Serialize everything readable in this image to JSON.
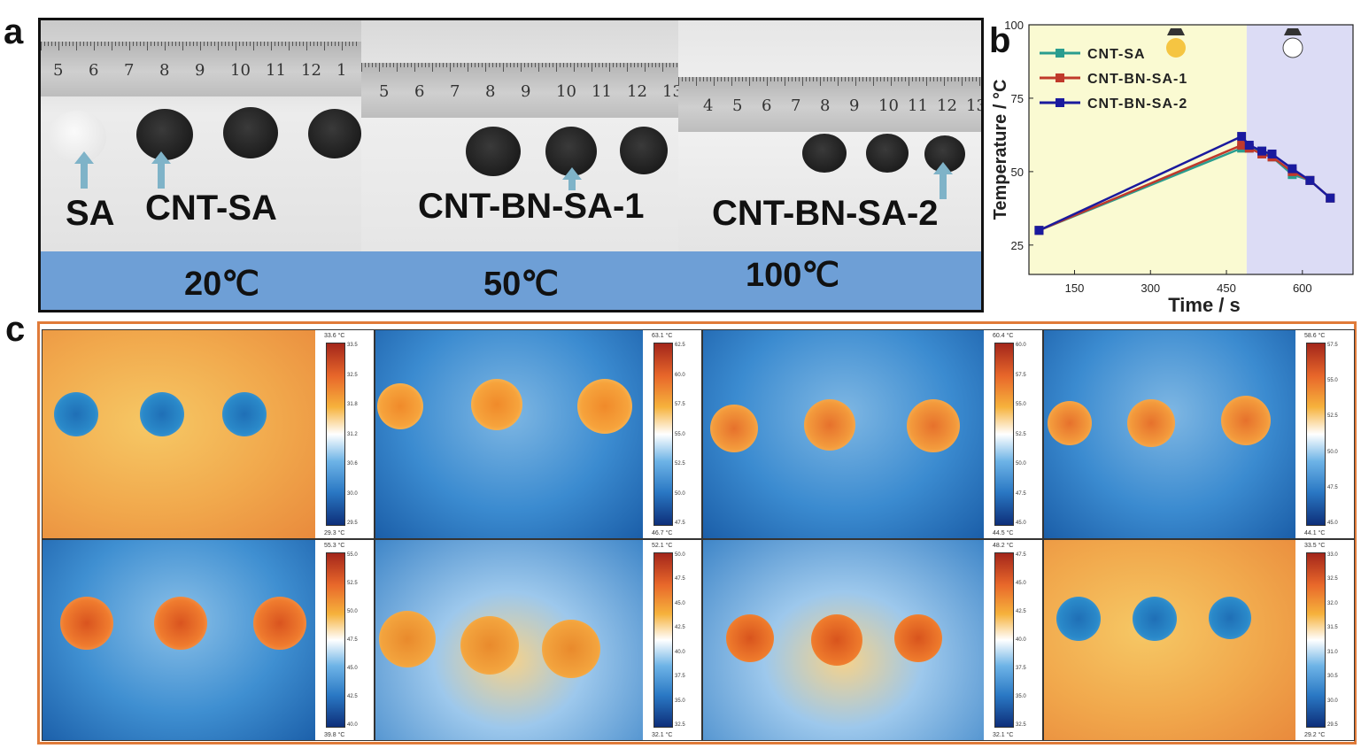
{
  "panel_labels": {
    "a": "a",
    "b": "b",
    "c": "c"
  },
  "panel_a": {
    "ruler_numbers": [
      [
        "5",
        "6",
        "7",
        "8",
        "9",
        "10",
        "11",
        "12",
        "1"
      ],
      [
        "5",
        "6",
        "7",
        "8",
        "9",
        "10",
        "11",
        "12",
        "13"
      ],
      [
        "4",
        "5",
        "6",
        "7",
        "8",
        "9",
        "10",
        "11",
        "12",
        "13"
      ]
    ],
    "sample_labels": [
      "SA",
      "CNT-SA",
      "CNT-BN-SA-1",
      "CNT-BN-SA-2"
    ],
    "temperatures": [
      "20℃",
      "50℃",
      "100℃"
    ],
    "colors": {
      "bar": "#6e9fd6",
      "arrow": "#7fb3c8"
    }
  },
  "panel_b": {
    "chart_data": {
      "type": "line",
      "xlabel": "Time / s",
      "ylabel": "Temperature / °C",
      "xlim": [
        60,
        700
      ],
      "ylim": [
        15,
        100
      ],
      "xticks": [
        150,
        300,
        450,
        600
      ],
      "yticks": [
        25,
        50,
        75,
        100
      ],
      "heating_region": [
        60,
        490
      ],
      "cooling_region": [
        490,
        700
      ],
      "region_colors": {
        "heating": "#fafad2",
        "cooling": "#dcdcf5"
      },
      "legend_position": "top-left",
      "series": [
        {
          "name": "CNT-SA",
          "color": "#2a9d8f",
          "x": [
            80,
            480,
            495,
            520,
            540,
            580,
            615,
            655
          ],
          "y": [
            30,
            58,
            58,
            57,
            55,
            49,
            47,
            41
          ]
        },
        {
          "name": "CNT-BN-SA-1",
          "color": "#c0392b",
          "x": [
            80,
            480,
            495,
            520,
            540,
            580,
            615,
            655
          ],
          "y": [
            30,
            59,
            58,
            56,
            55,
            50,
            47,
            41
          ]
        },
        {
          "name": "CNT-BN-SA-2",
          "color": "#1a1a9e",
          "x": [
            80,
            480,
            495,
            520,
            540,
            580,
            615,
            655
          ],
          "y": [
            30,
            62,
            59,
            57,
            56,
            51,
            47,
            41
          ]
        }
      ]
    }
  },
  "panel_c": {
    "thermal_images": [
      {
        "cbar_top": "33.6 °C",
        "cbar_bottom": "29.3 °C",
        "ticks": [
          "33.5",
          "32.5",
          "31.8",
          "31.2",
          "30.6",
          "30.0",
          "29.5"
        ]
      },
      {
        "cbar_top": "63.1 °C",
        "cbar_bottom": "46.7 °C",
        "ticks": [
          "62.5",
          "60.0",
          "57.5",
          "55.0",
          "52.5",
          "50.0",
          "47.5"
        ]
      },
      {
        "cbar_top": "60.4 °C",
        "cbar_bottom": "44.5 °C",
        "ticks": [
          "60.0",
          "57.5",
          "55.0",
          "52.5",
          "50.0",
          "47.5",
          "45.0"
        ]
      },
      {
        "cbar_top": "58.6 °C",
        "cbar_bottom": "44.1 °C",
        "ticks": [
          "57.5",
          "55.0",
          "52.5",
          "50.0",
          "47.5",
          "45.0"
        ]
      },
      {
        "cbar_top": "55.3 °C",
        "cbar_bottom": "39.8 °C",
        "ticks": [
          "55.0",
          "52.5",
          "50.0",
          "47.5",
          "45.0",
          "42.5",
          "40.0"
        ]
      },
      {
        "cbar_top": "52.1 °C",
        "cbar_bottom": "32.1 °C",
        "ticks": [
          "50.0",
          "47.5",
          "45.0",
          "42.5",
          "40.0",
          "37.5",
          "35.0",
          "32.5"
        ]
      },
      {
        "cbar_top": "48.2 °C",
        "cbar_bottom": "32.1 °C",
        "ticks": [
          "47.5",
          "45.0",
          "42.5",
          "40.0",
          "37.5",
          "35.0",
          "32.5"
        ]
      },
      {
        "cbar_top": "33.5 °C",
        "cbar_bottom": "29.2 °C",
        "ticks": [
          "33.0",
          "32.5",
          "32.0",
          "31.5",
          "31.0",
          "30.5",
          "30.0",
          "29.5"
        ]
      }
    ]
  }
}
